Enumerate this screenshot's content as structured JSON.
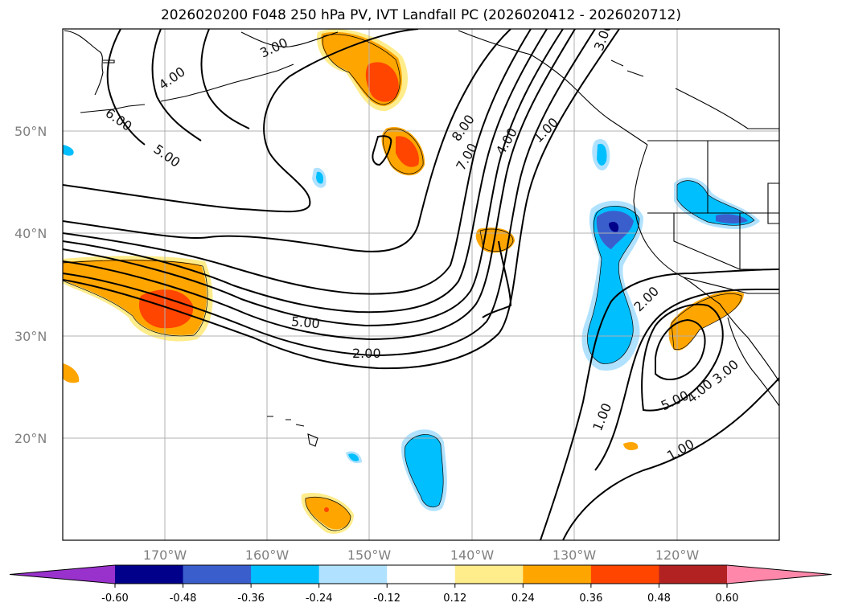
{
  "map": {
    "title": "2026020200 F048 250 hPa PV, IVT Landfall PC (2026020412 - 2026020712)",
    "lat_labels": [
      "50°N",
      "40°N",
      "30°N",
      "20°N"
    ],
    "lon_labels": [
      "170°W",
      "160°W",
      "150°W",
      "140°W",
      "130°W",
      "120°W"
    ],
    "contour_labels": [
      "4.00",
      "3.00",
      "6.00",
      "5.00",
      "8.00",
      "7.00",
      "4.00",
      "1.00",
      "3.00",
      "5.00",
      "2.00",
      "2.00",
      "1.00",
      "1.00",
      "5.00",
      "4.00",
      "3.00"
    ],
    "colorbar": {
      "tick_labels": [
        "-0.60",
        "-0.48",
        "-0.36",
        "-0.24",
        "-0.12",
        "0.12",
        "0.24",
        "0.36",
        "0.48",
        "0.60"
      ],
      "colors": [
        "#9932cc",
        "#00008b",
        "#3a5fcd",
        "#00bfff",
        "#b0e2ff",
        "#ffffff",
        "#ffec8b",
        "#ffa500",
        "#ff4500",
        "#b22222",
        "#ff88aa"
      ]
    }
  }
}
